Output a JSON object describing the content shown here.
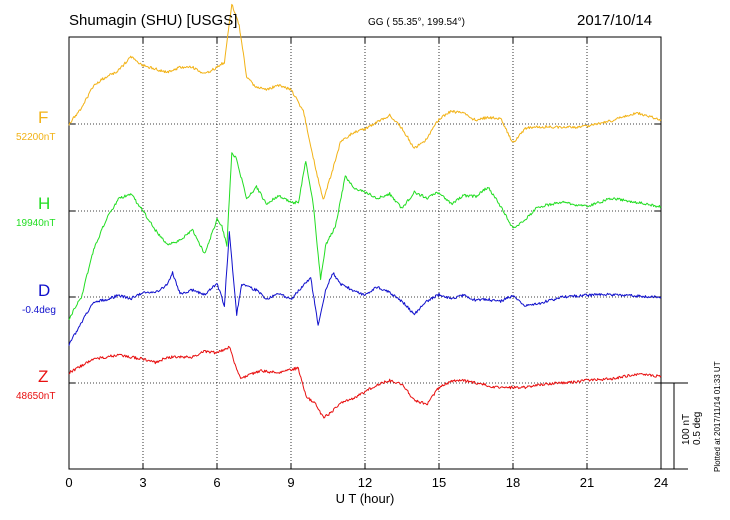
{
  "header": {
    "station": "Shumagin (SHU)  [USGS]",
    "coords": "GG ( 55.35°, 199.54°)",
    "date": "2017/10/14"
  },
  "footer": {
    "plotted": "Plotted at 2017/11/14 01:33 UT"
  },
  "channels": [
    {
      "letter": "F",
      "baseline": "52200nT",
      "color": "#f2b216"
    },
    {
      "letter": "H",
      "baseline": "19940nT",
      "color": "#22dd22"
    },
    {
      "letter": "D",
      "baseline": "-0.4deg",
      "color": "#1010cc"
    },
    {
      "letter": "Z",
      "baseline": "48650nT",
      "color": "#e81010"
    }
  ],
  "scale": {
    "line1": "100 nT",
    "line2": "0.5 deg"
  },
  "chart_data": {
    "type": "line",
    "title": "Shumagin (SHU)  [USGS]",
    "xlabel": "U T (hour)",
    "ylabel": "",
    "xlim": [
      0,
      24
    ],
    "xticks": [
      0,
      3,
      6,
      9,
      12,
      15,
      18,
      21,
      24
    ],
    "grid": true,
    "units": {
      "F": "nT",
      "H": "nT",
      "D": "deg",
      "Z": "nT"
    },
    "scale_bar": {
      "nT": 100,
      "deg": 0.5
    },
    "series": [
      {
        "name": "F",
        "baseline": "52200nT",
        "x": [
          0,
          0.5,
          1,
          1.5,
          2,
          2.5,
          3,
          3.5,
          4,
          4.5,
          5,
          5.5,
          6,
          6.3,
          6.6,
          6.9,
          7.2,
          7.6,
          8,
          8.5,
          9,
          9.5,
          10,
          10.3,
          10.6,
          11,
          11.5,
          12,
          12.5,
          13,
          13.5,
          14,
          14.5,
          15,
          15.5,
          16,
          16.5,
          17,
          17.5,
          18,
          18.5,
          19,
          20,
          21,
          22,
          23,
          24
        ],
        "y": [
          0,
          18,
          45,
          55,
          62,
          78,
          68,
          64,
          60,
          66,
          66,
          58,
          66,
          72,
          140,
          115,
          55,
          42,
          40,
          45,
          40,
          15,
          -52,
          -88,
          -62,
          -22,
          -10,
          -6,
          3,
          10,
          -5,
          -28,
          -18,
          6,
          15,
          12,
          4,
          8,
          6,
          -22,
          -5,
          -3,
          -4,
          -3,
          4,
          13,
          5
        ]
      },
      {
        "name": "H",
        "baseline": "19940nT",
        "x": [
          0,
          0.5,
          1,
          1.5,
          2,
          2.5,
          3,
          3.5,
          4,
          4.5,
          5,
          5.5,
          6,
          6.2,
          6.4,
          6.6,
          6.8,
          7.2,
          7.6,
          8,
          8.5,
          9,
          9.3,
          9.6,
          9.9,
          10.2,
          10.4,
          10.8,
          11.2,
          11.6,
          12,
          12.5,
          13,
          13.5,
          14,
          14.5,
          15,
          15.5,
          16,
          16.5,
          17,
          17.5,
          18,
          18.5,
          19,
          20,
          21,
          22,
          23,
          24
        ],
        "y": [
          -125,
          -100,
          -45,
          -10,
          14,
          20,
          0,
          -22,
          -40,
          -34,
          -22,
          -50,
          -10,
          -18,
          -40,
          68,
          60,
          14,
          28,
          8,
          18,
          10,
          10,
          58,
          8,
          -80,
          -40,
          -18,
          40,
          26,
          22,
          15,
          20,
          3,
          22,
          15,
          22,
          8,
          18,
          17,
          28,
          5,
          -20,
          -10,
          5,
          10,
          5,
          15,
          10,
          5
        ]
      },
      {
        "name": "D",
        "baseline": "-0.4deg",
        "x": [
          0,
          0.5,
          1,
          1.5,
          2,
          2.5,
          3,
          3.5,
          4,
          4.2,
          4.5,
          5,
          5.5,
          6,
          6.3,
          6.5,
          6.8,
          7,
          7.2,
          7.6,
          8,
          8.5,
          9,
          9.4,
          9.8,
          10.1,
          10.4,
          10.7,
          11,
          11.5,
          12,
          12.5,
          13,
          13.5,
          14,
          14.5,
          15,
          15.5,
          16,
          16.5,
          17,
          17.5,
          18,
          18.5,
          19,
          20,
          21,
          22,
          23,
          24
        ],
        "y": [
          -55,
          -30,
          -5,
          -3,
          2,
          -2,
          5,
          5,
          15,
          28,
          4,
          8,
          3,
          16,
          -10,
          75,
          -20,
          15,
          12,
          8,
          -3,
          4,
          -3,
          10,
          22,
          -33,
          8,
          28,
          15,
          8,
          2,
          12,
          5,
          -5,
          -20,
          -5,
          3,
          -2,
          2,
          -4,
          -3,
          -5,
          2,
          -10,
          -8,
          0,
          2,
          3,
          1,
          0
        ]
      },
      {
        "name": "Z",
        "baseline": "48650nT",
        "x": [
          0,
          0.5,
          1,
          1.5,
          2,
          2.5,
          3,
          3.5,
          4,
          4.5,
          5,
          5.5,
          6,
          6.5,
          6.8,
          7,
          7.3,
          7.8,
          8.5,
          9,
          9.3,
          9.6,
          10,
          10.3,
          10.6,
          11,
          11.5,
          12,
          12.5,
          13,
          13.5,
          14,
          14.5,
          15,
          15.5,
          16,
          16.5,
          17,
          17.5,
          18,
          18.5,
          19,
          20,
          21,
          22,
          23,
          24
        ],
        "y": [
          12,
          20,
          28,
          30,
          33,
          30,
          28,
          24,
          30,
          30,
          30,
          37,
          35,
          42,
          15,
          5,
          10,
          14,
          12,
          16,
          17,
          -15,
          -25,
          -40,
          -35,
          -24,
          -18,
          -10,
          -2,
          3,
          -1,
          -20,
          -25,
          -5,
          2,
          3,
          0,
          -3,
          -6,
          -5,
          -5,
          -2,
          0,
          3,
          5,
          10,
          8
        ]
      }
    ]
  }
}
